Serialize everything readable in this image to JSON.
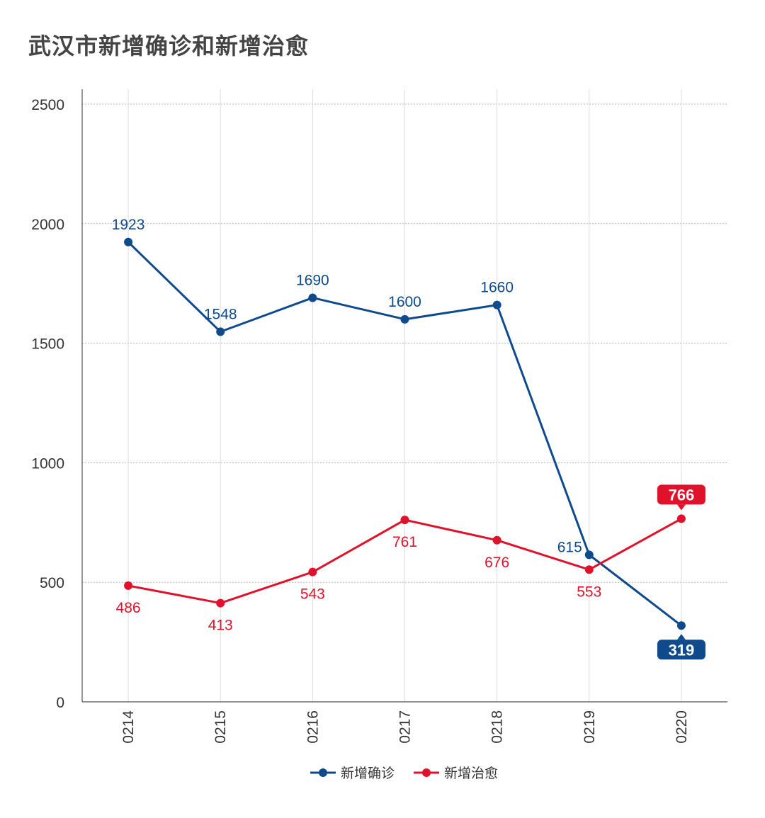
{
  "chart_data": {
    "type": "line",
    "title": "武汉市新增确诊和新增治愈",
    "categories": [
      "0214",
      "0215",
      "0216",
      "0217",
      "0218",
      "0219",
      "0220"
    ],
    "ylim": [
      0,
      2500
    ],
    "yticks": [
      0,
      500,
      1000,
      1500,
      2000,
      2500
    ],
    "grid": true,
    "legend_position": "bottom-center",
    "series": [
      {
        "name": "新增确诊",
        "color": "#0e4a8c",
        "values": [
          1923,
          1548,
          1690,
          1600,
          1660,
          615,
          319
        ]
      },
      {
        "name": "新增治愈",
        "color": "#e0112b",
        "values": [
          486,
          413,
          543,
          761,
          676,
          553,
          766
        ]
      }
    ]
  }
}
